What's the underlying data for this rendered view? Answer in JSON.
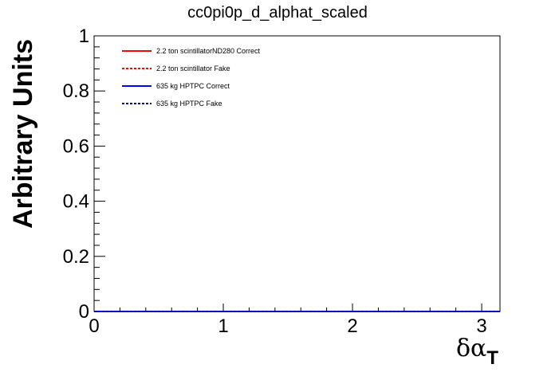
{
  "chart_data": {
    "type": "line",
    "title": "cc0pi0p_d_alphat_scaled",
    "ylabel": "Arbitrary Units",
    "xlabel": "δα",
    "xlabel_subscript": "T",
    "xlim": [
      0,
      3.14159
    ],
    "ylim": [
      0,
      1
    ],
    "x_ticks": [
      0,
      1,
      2,
      3
    ],
    "y_ticks": [
      0,
      0.2,
      0.4,
      0.6,
      0.8,
      1
    ],
    "x_tick_labels": [
      "0",
      "1",
      "2",
      "3"
    ],
    "y_tick_labels": [
      "0",
      "0.2",
      "0.4",
      "0.6",
      "0.8",
      "1"
    ],
    "grid": false,
    "legend_position": "top-left",
    "series": [
      {
        "name": "2.2 ton scintillatorND280 Correct",
        "color": "#ff0000",
        "dash": "solid",
        "x": [
          0,
          3.14159
        ],
        "y": [
          0,
          0
        ]
      },
      {
        "name": "2.2 ton scintillator Fake",
        "color": "#ff0000",
        "dash": "dashed",
        "x": [
          0,
          3.14159
        ],
        "y": [
          0,
          0
        ]
      },
      {
        "name": "635 kg HPTPC Correct",
        "color": "#0000ff",
        "dash": "solid",
        "x": [
          0,
          3.14159
        ],
        "y": [
          0,
          0
        ]
      },
      {
        "name": "635 kg HPTPC Fake",
        "color": "#00008b",
        "dash": "dashed",
        "x": [
          0,
          3.14159
        ],
        "y": [
          0,
          0
        ]
      }
    ]
  }
}
